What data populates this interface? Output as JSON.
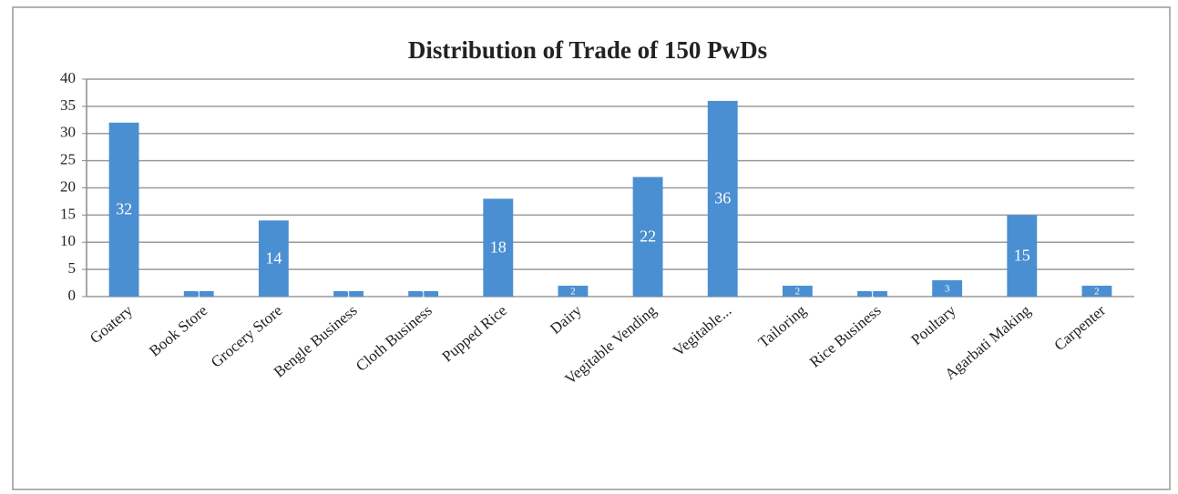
{
  "chart_data": {
    "type": "bar",
    "title": "Distribution of Trade of 150 PwDs",
    "categories": [
      "Goatery",
      "Book Store",
      "Grocery Store",
      "Bengle Business",
      "Cloth Business",
      "Pupped Rice",
      "Dairy",
      "Vegitable Vending",
      "Vegitable...",
      "Tailoring",
      "Rice Business",
      "Poultary",
      "Agarbati Making",
      "Carpenter"
    ],
    "values": [
      32,
      1,
      14,
      1,
      1,
      18,
      2,
      22,
      36,
      2,
      1,
      3,
      15,
      2
    ],
    "color": "#4a8fd2",
    "ylim": [
      0,
      40
    ],
    "yticks": [
      0,
      5,
      10,
      15,
      20,
      25,
      30,
      35,
      40
    ],
    "grid": true
  }
}
